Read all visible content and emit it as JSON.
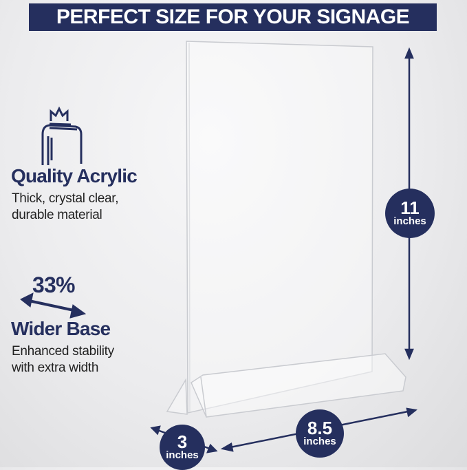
{
  "banner": {
    "title": "PERFECT SIZE FOR YOUR SIGNAGE"
  },
  "features": [
    {
      "icon": "crown-acrylic-icon",
      "title": "Quality Acrylic",
      "lines": [
        "Thick, crystal clear,",
        "durable material"
      ]
    },
    {
      "icon": "double-arrow-icon",
      "badge": "33%",
      "title": "Wider Base",
      "lines": [
        "Enhanced stability",
        "with extra width"
      ]
    }
  ],
  "dimensions": {
    "height": {
      "value": "11",
      "unit": "inches"
    },
    "depth": {
      "value": "3",
      "unit": "inches"
    },
    "width": {
      "value": "8.5",
      "unit": "inches"
    }
  },
  "colors": {
    "navy": "#252f5e",
    "background": "#ececee"
  }
}
